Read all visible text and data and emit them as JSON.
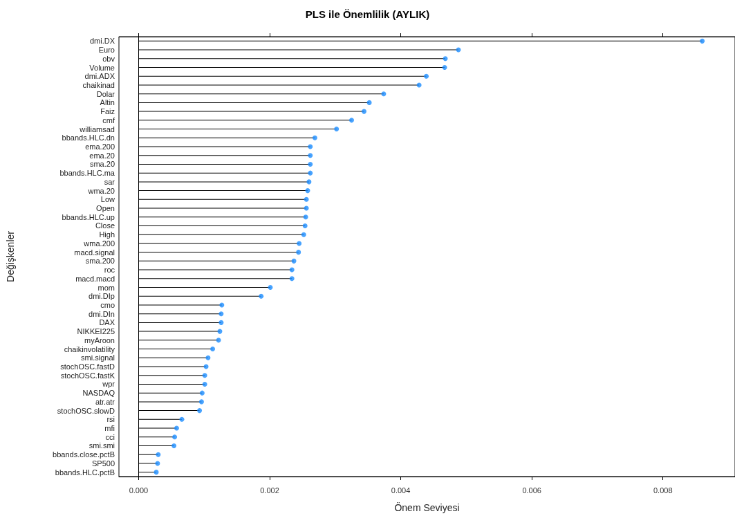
{
  "chart_data": {
    "type": "lollipop",
    "orientation": "horizontal",
    "title": "PLS ile Önemlilik (AYLIK)",
    "xlabel": "Önem Seviyesi",
    "ylabel": "Değişkenler",
    "categories": [
      "dmi.DX",
      "Euro",
      "obv",
      "Volume",
      "dmi.ADX",
      "chaikinad",
      "Dolar",
      "Altin",
      "Faiz",
      "cmf",
      "williamsad",
      "bbands.HLC.dn",
      "ema.200",
      "ema.20",
      "sma.20",
      "bbands.HLC.ma",
      "sar",
      "wma.20",
      "Low",
      "Open",
      "bbands.HLC.up",
      "Close",
      "High",
      "wma.200",
      "macd.signal",
      "sma.200",
      "roc",
      "macd.macd",
      "mom",
      "dmi.DIp",
      "cmo",
      "dmi.DIn",
      "DAX",
      "NIKKEI225",
      "myAroon",
      "chaikinvolatility",
      "smi.signal",
      "stochOSC.fastD",
      "stochOSC.fastK",
      "wpr",
      "NASDAQ",
      "atr.atr",
      "stochOSC.slowD",
      "rsi",
      "mfi",
      "cci",
      "smi.smi",
      "bbands.close.pctB",
      "SP500",
      "bbands.HLC.pctB"
    ],
    "values": [
      0.0086,
      0.00488,
      0.00468,
      0.00467,
      0.00439,
      0.00428,
      0.00374,
      0.00352,
      0.00344,
      0.00325,
      0.00302,
      0.00269,
      0.00262,
      0.00262,
      0.00262,
      0.00262,
      0.0026,
      0.00258,
      0.00256,
      0.00256,
      0.00255,
      0.00254,
      0.00252,
      0.00245,
      0.00244,
      0.00237,
      0.00234,
      0.00234,
      0.00201,
      0.00187,
      0.00127,
      0.00126,
      0.00126,
      0.00124,
      0.00122,
      0.00113,
      0.00106,
      0.00103,
      0.00101,
      0.00101,
      0.00097,
      0.00096,
      0.00093,
      0.00066,
      0.00058,
      0.00055,
      0.00054,
      0.0003,
      0.00029,
      0.00027
    ],
    "color": "#1a8cff",
    "marker": "circle",
    "xlim": [
      -0.0003,
      0.0091
    ],
    "xticks": [
      {
        "value": 0,
        "label": "0.000"
      },
      {
        "value": 0.002,
        "label": "0.002"
      },
      {
        "value": 0.004,
        "label": "0.004"
      },
      {
        "value": 0.006,
        "label": "0.006"
      },
      {
        "value": 0.008,
        "label": "0.008"
      }
    ]
  }
}
